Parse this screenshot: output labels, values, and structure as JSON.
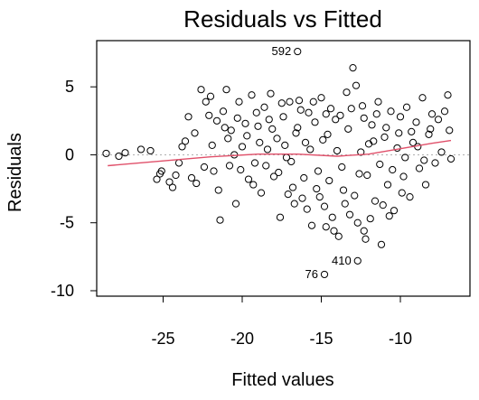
{
  "chart_data": {
    "type": "scatter",
    "title": "Residuals vs Fitted",
    "xlabel": "Fitted values",
    "ylabel": "Residuals",
    "xlim": [
      -29.2,
      -5.6
    ],
    "ylim": [
      -10.4,
      8.4
    ],
    "x_ticks": [
      -25,
      -20,
      -15,
      -10
    ],
    "y_ticks": [
      -10,
      -5,
      0,
      5
    ],
    "marker": "open-circle",
    "point_color": "#000000",
    "smoother_color": "#e0506a",
    "reference_line": {
      "y": 0,
      "style": "dotted",
      "color": "#b0b0b0"
    },
    "smoother": [
      [
        -28.5,
        -0.8
      ],
      [
        -25,
        -0.45
      ],
      [
        -22,
        -0.15
      ],
      [
        -19,
        0.05
      ],
      [
        -16.5,
        0.05
      ],
      [
        -14,
        -0.1
      ],
      [
        -12,
        0.05
      ],
      [
        -10,
        0.45
      ],
      [
        -8,
        0.85
      ],
      [
        -6.8,
        1.05
      ]
    ],
    "labeled_points": [
      {
        "label": "592",
        "x": -16.5,
        "y": 7.6
      },
      {
        "label": "410",
        "x": -12.7,
        "y": -7.8
      },
      {
        "label": "76",
        "x": -14.8,
        "y": -8.8
      }
    ],
    "points": [
      [
        -28.6,
        0.1
      ],
      [
        -27.8,
        -0.1
      ],
      [
        -27.4,
        0.15
      ],
      [
        -26.4,
        0.4
      ],
      [
        -25.8,
        0.3
      ],
      [
        -25.2,
        -1.4
      ],
      [
        -25.1,
        -1.2
      ],
      [
        -24.6,
        -2.0
      ],
      [
        -24.2,
        -1.5
      ],
      [
        -23.8,
        0.6
      ],
      [
        -23.4,
        2.8
      ],
      [
        -23.0,
        1.6
      ],
      [
        -22.9,
        -2.1
      ],
      [
        -22.6,
        4.8
      ],
      [
        -22.3,
        3.9
      ],
      [
        -22.0,
        4.3
      ],
      [
        -21.8,
        -1.2
      ],
      [
        -21.6,
        2.5
      ],
      [
        -21.4,
        -4.8
      ],
      [
        -21.2,
        3.2
      ],
      [
        -21.0,
        4.8
      ],
      [
        -20.8,
        -0.8
      ],
      [
        -20.7,
        1.8
      ],
      [
        -20.4,
        -3.6
      ],
      [
        -20.2,
        3.9
      ],
      [
        -20.0,
        0.6
      ],
      [
        -19.8,
        2.3
      ],
      [
        -19.6,
        -1.8
      ],
      [
        -19.4,
        4.4
      ],
      [
        -19.2,
        -0.6
      ],
      [
        -19.0,
        2.1
      ],
      [
        -18.8,
        -2.8
      ],
      [
        -18.6,
        3.5
      ],
      [
        -18.4,
        0.4
      ],
      [
        -18.2,
        4.5
      ],
      [
        -18.0,
        -1.6
      ],
      [
        -17.8,
        1.2
      ],
      [
        -17.6,
        -4.6
      ],
      [
        -17.4,
        2.8
      ],
      [
        -17.2,
        -0.2
      ],
      [
        -17.0,
        3.9
      ],
      [
        -16.8,
        -2.4
      ],
      [
        -16.6,
        1.6
      ],
      [
        -16.4,
        4.0
      ],
      [
        -16.2,
        -3.2
      ],
      [
        -16.0,
        0.9
      ],
      [
        -15.8,
        3.1
      ],
      [
        -15.6,
        -5.2
      ],
      [
        -15.4,
        2.4
      ],
      [
        -15.2,
        -1.2
      ],
      [
        -15.0,
        4.2
      ],
      [
        -14.8,
        -3.8
      ],
      [
        -14.6,
        1.5
      ],
      [
        -14.4,
        3.4
      ],
      [
        -14.2,
        -5.6
      ],
      [
        -14.0,
        0.3
      ],
      [
        -13.8,
        2.9
      ],
      [
        -13.6,
        -2.6
      ],
      [
        -13.4,
        4.6
      ],
      [
        -13.2,
        -4.4
      ],
      [
        -13.0,
        6.4
      ],
      [
        -12.8,
        5.1
      ],
      [
        -12.6,
        -1.4
      ],
      [
        -12.4,
        3.6
      ],
      [
        -12.2,
        -6.2
      ],
      [
        -12.0,
        0.8
      ],
      [
        -11.8,
        2.2
      ],
      [
        -11.6,
        -3.4
      ],
      [
        -11.4,
        3.9
      ],
      [
        -11.2,
        -6.6
      ],
      [
        -11.0,
        1.3
      ],
      [
        -10.8,
        -2.2
      ],
      [
        -10.6,
        3.2
      ],
      [
        -10.4,
        -4.1
      ],
      [
        -10.2,
        0.5
      ],
      [
        -10.0,
        2.8
      ],
      [
        -9.8,
        -1.6
      ],
      [
        -9.6,
        3.5
      ],
      [
        -9.4,
        -3.1
      ],
      [
        -9.2,
        0.9
      ],
      [
        -9.0,
        2.4
      ],
      [
        -8.8,
        -1.0
      ],
      [
        -8.6,
        4.2
      ],
      [
        -8.4,
        -2.2
      ],
      [
        -8.2,
        1.5
      ],
      [
        -8.0,
        3.0
      ],
      [
        -7.8,
        -0.6
      ],
      [
        -7.6,
        2.6
      ],
      [
        -7.4,
        0.2
      ],
      [
        -7.2,
        3.2
      ],
      [
        -7.0,
        4.4
      ],
      [
        -6.9,
        1.8
      ],
      [
        -6.8,
        -0.3
      ],
      [
        -24.0,
        -0.6
      ],
      [
        -23.6,
        1.0
      ],
      [
        -22.4,
        -0.9
      ],
      [
        -21.9,
        0.7
      ],
      [
        -21.5,
        -2.6
      ],
      [
        -20.9,
        1.2
      ],
      [
        -20.5,
        0.0
      ],
      [
        -20.1,
        -1.1
      ],
      [
        -19.7,
        1.4
      ],
      [
        -19.3,
        -2.2
      ],
      [
        -18.9,
        0.9
      ],
      [
        -18.5,
        -0.8
      ],
      [
        -18.1,
        1.9
      ],
      [
        -17.7,
        -1.3
      ],
      [
        -17.3,
        0.7
      ],
      [
        -16.9,
        -0.5
      ],
      [
        -16.5,
        2.0
      ],
      [
        -16.1,
        -1.7
      ],
      [
        -15.7,
        0.4
      ],
      [
        -15.3,
        -2.5
      ],
      [
        -14.9,
        1.1
      ],
      [
        -14.5,
        -1.9
      ],
      [
        -14.1,
        2.6
      ],
      [
        -13.7,
        -0.9
      ],
      [
        -13.3,
        1.9
      ],
      [
        -12.9,
        -3.0
      ],
      [
        -12.5,
        0.2
      ],
      [
        -12.1,
        -1.5
      ],
      [
        -11.7,
        1.0
      ],
      [
        -11.3,
        -0.7
      ],
      [
        -10.9,
        2.0
      ],
      [
        -10.5,
        -1.1
      ],
      [
        -10.1,
        1.6
      ],
      [
        -9.7,
        -0.2
      ],
      [
        -9.3,
        1.7
      ],
      [
        -8.9,
        0.6
      ],
      [
        -8.5,
        -0.4
      ],
      [
        -8.1,
        1.9
      ],
      [
        -15.9,
        -4.0
      ],
      [
        -15.1,
        -3.1
      ],
      [
        -14.3,
        -4.6
      ],
      [
        -13.5,
        -3.6
      ],
      [
        -12.7,
        -5.0
      ],
      [
        -11.9,
        -4.7
      ],
      [
        -11.1,
        -3.7
      ],
      [
        -13.9,
        -6.0
      ],
      [
        -14.7,
        -5.3
      ],
      [
        -16.7,
        -3.6
      ],
      [
        -17.1,
        -2.9
      ],
      [
        -12.3,
        -5.6
      ],
      [
        -10.7,
        -4.5
      ],
      [
        -9.9,
        -2.8
      ],
      [
        -15.5,
        3.9
      ],
      [
        -14.7,
        3.0
      ],
      [
        -13.1,
        3.4
      ],
      [
        -12.3,
        2.7
      ],
      [
        -11.5,
        3.0
      ],
      [
        -16.3,
        3.3
      ],
      [
        -17.5,
        3.8
      ],
      [
        -18.3,
        2.6
      ],
      [
        -19.1,
        3.1
      ],
      [
        -20.3,
        2.7
      ],
      [
        -21.1,
        2.0
      ],
      [
        -22.1,
        2.9
      ],
      [
        -23.2,
        -1.7
      ],
      [
        -24.4,
        -2.4
      ],
      [
        -25.4,
        -1.8
      ]
    ]
  }
}
